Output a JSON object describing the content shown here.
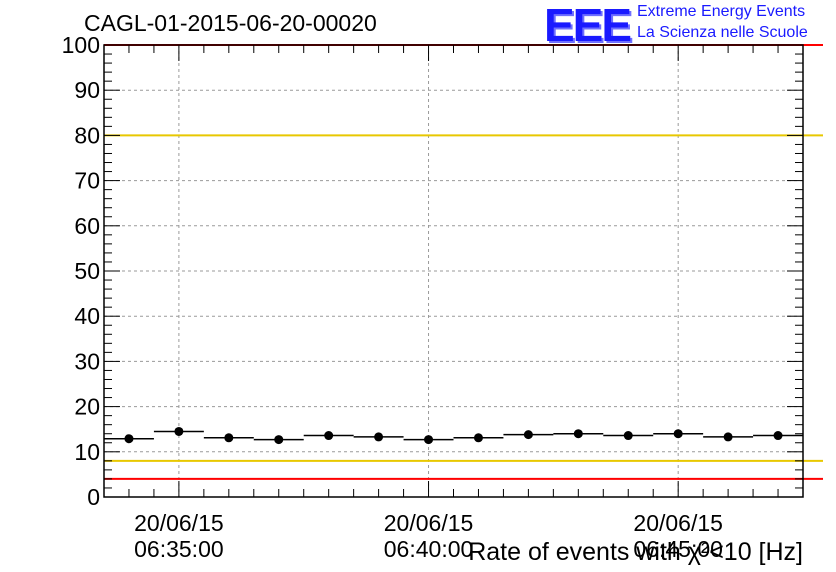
{
  "header": {
    "title": "CAGL-01-2015-06-20-00020",
    "logo_text": "EEE",
    "logo_line1": "Extreme Energy Events",
    "logo_line2": "La Scienza nelle Scuole"
  },
  "chart_data": {
    "type": "scatter",
    "title": "CAGL-01-2015-06-20-00020",
    "xlabel": "Rate of events with χ²<10 [Hz]",
    "ylabel": "",
    "ylim": [
      0,
      100
    ],
    "y_ticks": [
      "0",
      "10",
      "20",
      "30",
      "40",
      "50",
      "60",
      "70",
      "80",
      "90",
      "100"
    ],
    "x_ticks": [
      {
        "date": "20/06/15",
        "time": "06:35:00"
      },
      {
        "date": "20/06/15",
        "time": "06:40:00"
      },
      {
        "date": "20/06/15",
        "time": "06:45:00"
      }
    ],
    "x_range": [
      "20/06/15 06:33:30",
      "20/06/15 06:47:30"
    ],
    "grid": true,
    "points": [
      {
        "x": "06:34:00",
        "y": 12.9
      },
      {
        "x": "06:35:00",
        "y": 14.5
      },
      {
        "x": "06:36:00",
        "y": 13.1
      },
      {
        "x": "06:37:00",
        "y": 12.7
      },
      {
        "x": "06:38:00",
        "y": 13.6
      },
      {
        "x": "06:39:00",
        "y": 13.3
      },
      {
        "x": "06:40:00",
        "y": 12.7
      },
      {
        "x": "06:41:00",
        "y": 13.1
      },
      {
        "x": "06:42:00",
        "y": 13.8
      },
      {
        "x": "06:43:00",
        "y": 14.0
      },
      {
        "x": "06:44:00",
        "y": 13.6
      },
      {
        "x": "06:45:00",
        "y": 14.0
      },
      {
        "x": "06:46:00",
        "y": 13.3
      },
      {
        "x": "06:47:00",
        "y": 13.6
      }
    ],
    "reference_lines": [
      {
        "y": 100,
        "color": "#ff0000"
      },
      {
        "y": 80,
        "color": "#e8c800"
      },
      {
        "y": 8,
        "color": "#e8c800"
      },
      {
        "y": 4,
        "color": "#ff0000"
      }
    ]
  }
}
